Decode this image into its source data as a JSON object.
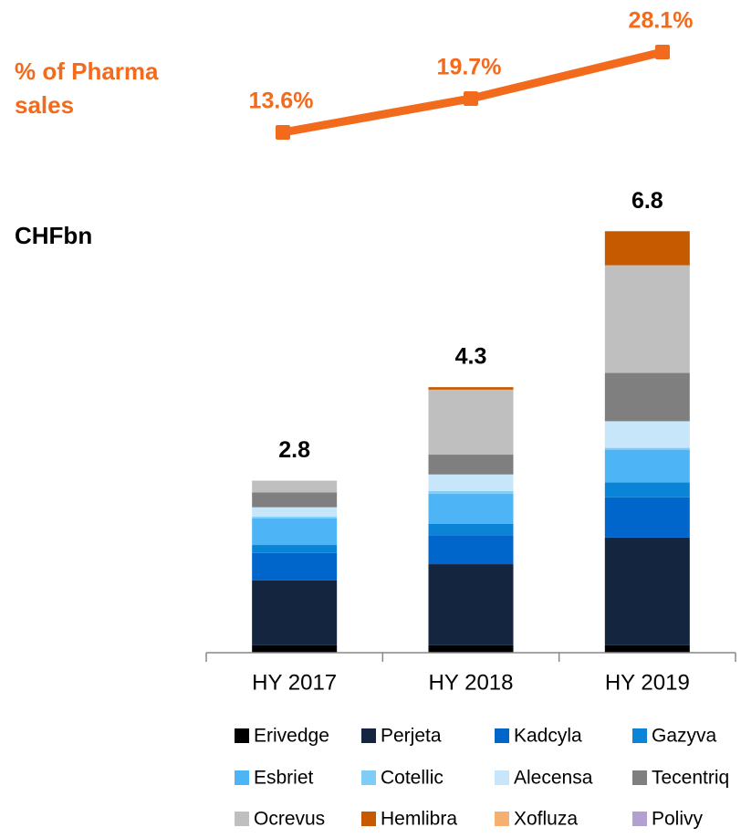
{
  "chart_data": {
    "type": "bar",
    "stacked": true,
    "unit_label": "CHFbn",
    "categories": [
      "HY 2017",
      "HY 2018",
      "HY 2019"
    ],
    "totals": [
      2.8,
      4.3,
      6.8
    ],
    "series": [
      {
        "name": "Erivedge",
        "color": "#000000",
        "values": [
          0.12,
          0.12,
          0.12
        ]
      },
      {
        "name": "Perjeta",
        "color": "#13253f",
        "values": [
          1.05,
          1.31,
          1.74
        ]
      },
      {
        "name": "Kadcyla",
        "color": "#0066cc",
        "values": [
          0.44,
          0.47,
          0.65
        ]
      },
      {
        "name": "Gazyva",
        "color": "#0a84d6",
        "values": [
          0.13,
          0.18,
          0.24
        ]
      },
      {
        "name": "Esbriet",
        "color": "#4db4f5",
        "values": [
          0.43,
          0.49,
          0.53
        ]
      },
      {
        "name": "Cotellic",
        "color": "#7fcdf7",
        "values": [
          0.03,
          0.04,
          0.03
        ]
      },
      {
        "name": "Alecensa",
        "color": "#c8e6fa",
        "values": [
          0.15,
          0.27,
          0.43
        ]
      },
      {
        "name": "Tecentriq",
        "color": "#7f7f7f",
        "values": [
          0.24,
          0.32,
          0.78
        ]
      },
      {
        "name": "Ocrevus",
        "color": "#bfbfbf",
        "values": [
          0.19,
          1.05,
          1.74
        ]
      },
      {
        "name": "Hemlibra",
        "color": "#c55a00",
        "values": [
          0,
          0.04,
          0.55
        ]
      },
      {
        "name": "Xofluza",
        "color": "#f5b070",
        "values": [
          0,
          0,
          0
        ]
      },
      {
        "name": "Polivy",
        "color": "#b4a0d0",
        "values": [
          0,
          0,
          0
        ]
      }
    ],
    "line": {
      "name": "% of Pharma sales",
      "color": "#f26b1d",
      "values": [
        13.6,
        19.7,
        28.1
      ],
      "value_labels": [
        "13.6%",
        "19.7%",
        "28.1%"
      ]
    }
  }
}
